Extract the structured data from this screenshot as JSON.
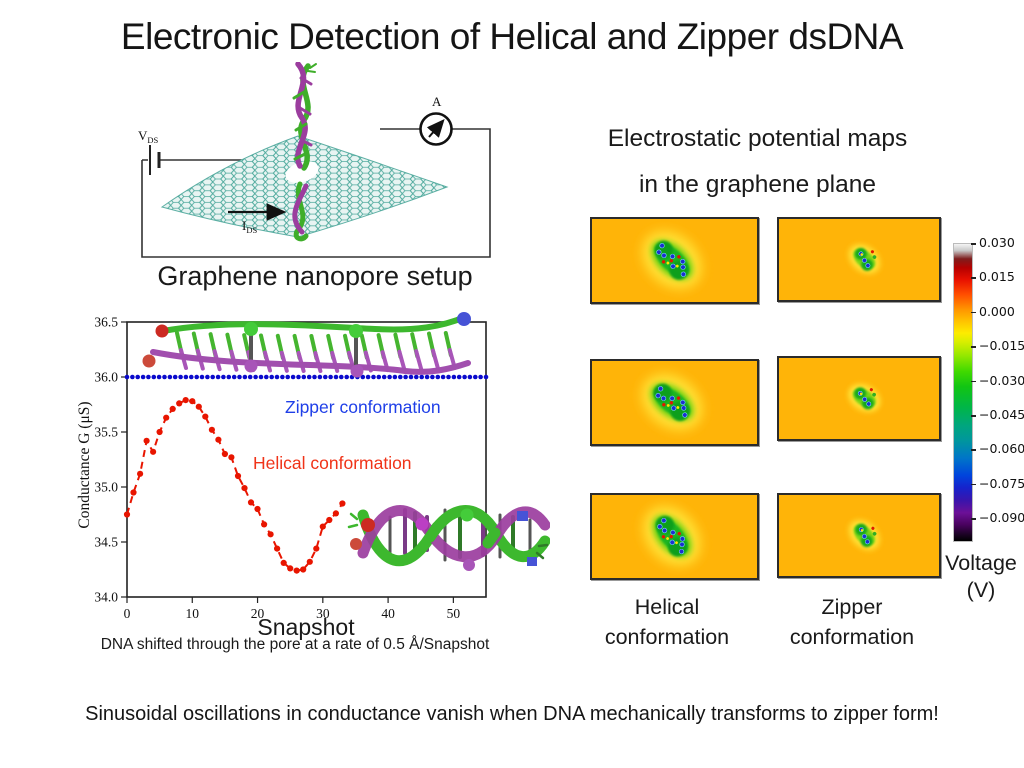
{
  "slide": {
    "title": "Electronic Detection of Helical and Zipper dsDNA",
    "bottom_note": "Sinusoidal oscillations in conductance vanish when DNA mechanically transforms to zipper form!"
  },
  "setup": {
    "caption": "Graphene nanopore setup",
    "labels": {
      "vds_main": "V",
      "vds_sub": "DS",
      "ids_main": "I",
      "ids_sub": "DS",
      "ammeter": "A"
    }
  },
  "chart_data": {
    "type": "scatter",
    "xlabel": "Snapshot",
    "ylabel": "Conductance G (μS)",
    "caption": "DNA shifted through the pore at a rate of 0.5 Å/Snapshot",
    "xlim": [
      0,
      55
    ],
    "ylim": [
      34.0,
      36.5
    ],
    "xticks": [
      0,
      10,
      20,
      30,
      40,
      50
    ],
    "yticks": [
      34.0,
      34.5,
      35.0,
      35.5,
      36.0,
      36.5
    ],
    "grid": false,
    "series": [
      {
        "name": "Zipper conformation",
        "color": "#0a0acc",
        "label_color": "#1f3fe8",
        "style": "dotted-flat",
        "value": 36.0,
        "x_start": 0,
        "x_end": 55,
        "n_points": 68
      },
      {
        "name": "Helical conformation",
        "color": "#e81500",
        "label_color": "#f03318",
        "style": "dashed-with-dots",
        "x": [
          0,
          1,
          2,
          3,
          4,
          5,
          6,
          7,
          8,
          9,
          10,
          11,
          12,
          13,
          14,
          15,
          16,
          17,
          18,
          19,
          20,
          21,
          22,
          23,
          24,
          25,
          26,
          27,
          28,
          29,
          30,
          31,
          32,
          33
        ],
        "y": [
          34.75,
          34.95,
          35.12,
          35.42,
          35.32,
          35.5,
          35.63,
          35.71,
          35.76,
          35.79,
          35.78,
          35.73,
          35.64,
          35.52,
          35.43,
          35.3,
          35.27,
          35.1,
          34.99,
          34.86,
          34.8,
          34.66,
          34.57,
          34.44,
          34.31,
          34.26,
          34.24,
          34.25,
          34.32,
          34.44,
          34.64,
          34.7,
          34.76,
          34.85
        ]
      }
    ]
  },
  "maps": {
    "title_line1": "Electrostatic potential maps",
    "title_line2": "in the graphene plane",
    "columns": [
      {
        "line1": "Helical",
        "line2": "conformation"
      },
      {
        "line1": "Zipper",
        "line2": "conformation"
      }
    ],
    "panel_bg_color": "#ffb408",
    "colorbar": {
      "ticks": [
        "0.030",
        "0.015",
        "0.000",
        "−0.015",
        "−0.030",
        "−0.045",
        "−0.060",
        "−0.075",
        "−0.090"
      ],
      "label_line1": "Voltage",
      "label_line2": "(V)"
    }
  }
}
